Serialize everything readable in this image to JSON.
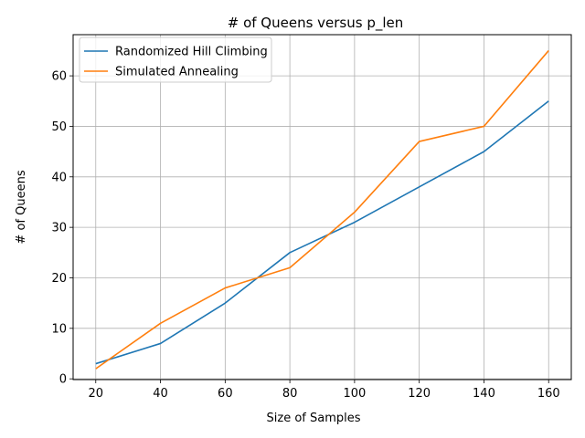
{
  "chart_data": {
    "type": "line",
    "title": "# of Queens versus p_len",
    "xlabel": "Size of Samples",
    "ylabel": "# of Queens",
    "x": [
      20,
      40,
      60,
      80,
      100,
      120,
      140,
      160
    ],
    "xticks": [
      "20",
      "40",
      "60",
      "80",
      "100",
      "120",
      "140",
      "160"
    ],
    "yticks": [
      "0",
      "10",
      "20",
      "30",
      "40",
      "50",
      "60"
    ],
    "xlim": [
      13,
      167
    ],
    "ylim": [
      -0.15,
      68.15
    ],
    "grid": true,
    "legend_position": "top-left",
    "series": [
      {
        "name": "Randomized Hill Climbing",
        "color": "#1f77b4",
        "values": [
          3,
          7,
          15,
          25,
          31,
          38,
          45,
          55
        ]
      },
      {
        "name": "Simulated Annealing",
        "color": "#ff7f0e",
        "values": [
          2,
          11,
          18,
          22,
          33,
          47,
          50,
          65
        ]
      }
    ]
  }
}
